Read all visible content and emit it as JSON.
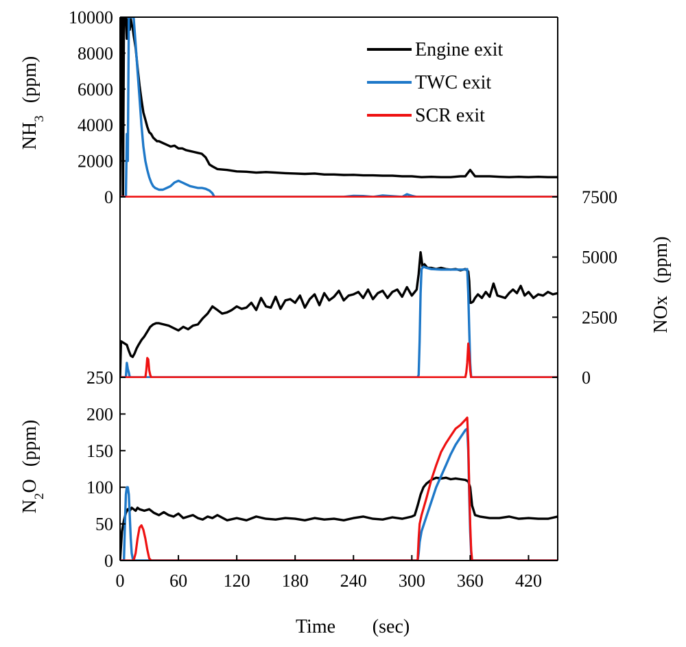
{
  "colors": {
    "engine": "#000000",
    "twc": "#1e78c8",
    "scr": "#ee1111",
    "frame": "#000000"
  },
  "legend": [
    {
      "key": "engine",
      "label": "Engine exit"
    },
    {
      "key": "twc",
      "label": "TWC exit"
    },
    {
      "key": "scr",
      "label": "SCR exit"
    }
  ],
  "chart_data": [
    {
      "type": "line",
      "panel": "NH3",
      "ylabel": "NH3 (ppm)",
      "ylabel_parts": {
        "main": "NH",
        "sub": "3",
        "unit": "(ppm)"
      },
      "ylim": [
        0,
        10000
      ],
      "yticks": [
        0,
        2000,
        4000,
        6000,
        8000,
        10000
      ],
      "ytick_labels": [
        "0",
        "2000",
        "4000",
        "6000",
        "8000",
        "10000"
      ],
      "ytick_label_side": "left",
      "series": [
        {
          "name": "Engine exit",
          "key": "engine",
          "x": [
            0,
            1,
            2,
            3,
            4,
            5,
            6,
            7,
            8,
            9,
            10,
            11,
            12,
            13,
            14,
            16,
            18,
            20,
            22,
            24,
            26,
            28,
            30,
            32,
            34,
            36,
            38,
            40,
            44,
            48,
            52,
            56,
            60,
            64,
            68,
            72,
            76,
            80,
            84,
            88,
            90,
            92,
            95,
            100,
            110,
            120,
            130,
            140,
            150,
            160,
            170,
            180,
            190,
            200,
            210,
            220,
            230,
            240,
            250,
            260,
            270,
            280,
            290,
            300,
            310,
            320,
            330,
            340,
            350,
            355,
            360,
            365,
            370,
            380,
            390,
            400,
            410,
            420,
            430,
            440,
            450
          ],
          "y": [
            0,
            10000,
            10000,
            0,
            10000,
            10000,
            10000,
            8800,
            9800,
            10000,
            9300,
            9900,
            9600,
            9400,
            9000,
            8300,
            7200,
            6200,
            5400,
            4700,
            4300,
            3900,
            3600,
            3500,
            3300,
            3200,
            3100,
            3100,
            3000,
            2900,
            2800,
            2850,
            2700,
            2700,
            2600,
            2550,
            2500,
            2450,
            2400,
            2200,
            2000,
            1800,
            1700,
            1550,
            1500,
            1420,
            1400,
            1350,
            1380,
            1350,
            1320,
            1300,
            1280,
            1300,
            1250,
            1250,
            1220,
            1230,
            1200,
            1200,
            1180,
            1180,
            1150,
            1150,
            1100,
            1120,
            1100,
            1100,
            1150,
            1150,
            1500,
            1150,
            1150,
            1150,
            1120,
            1100,
            1120,
            1100,
            1120,
            1100,
            1100
          ]
        },
        {
          "name": "TWC exit",
          "key": "twc",
          "x": [
            0,
            5,
            6,
            7,
            8,
            9,
            10,
            11,
            12,
            14,
            16,
            18,
            20,
            22,
            24,
            26,
            28,
            30,
            32,
            34,
            36,
            38,
            40,
            44,
            48,
            52,
            56,
            60,
            64,
            68,
            72,
            76,
            80,
            84,
            88,
            92,
            95,
            97,
            100,
            230,
            240,
            250,
            260,
            270,
            280,
            290,
            295,
            300,
            305,
            310,
            450
          ],
          "y": [
            0,
            0,
            0,
            3500,
            2000,
            10000,
            10000,
            10000,
            10000,
            10000,
            8500,
            7000,
            5500,
            4000,
            2800,
            2000,
            1500,
            1100,
            800,
            600,
            500,
            450,
            400,
            400,
            500,
            600,
            800,
            900,
            800,
            700,
            600,
            550,
            500,
            500,
            450,
            350,
            200,
            0,
            0,
            0,
            60,
            50,
            0,
            80,
            40,
            0,
            150,
            60,
            0,
            0,
            0
          ]
        },
        {
          "name": "SCR exit",
          "key": "scr",
          "x": [
            0,
            450
          ],
          "y": [
            0,
            0
          ]
        }
      ]
    },
    {
      "type": "line",
      "panel": "NOx",
      "ylabel": "NOx (ppm)",
      "ylabel_parts": {
        "main": "NOx",
        "unit": "(ppm)"
      },
      "ylim": [
        0,
        7500
      ],
      "yticks": [
        0,
        2500,
        5000,
        7500
      ],
      "ytick_labels": [
        "0",
        "2500",
        "5000",
        "7500"
      ],
      "ytick_label_side": "right",
      "series": [
        {
          "name": "Engine exit",
          "key": "engine",
          "x": [
            0,
            1,
            3,
            5,
            7,
            9,
            11,
            13,
            15,
            17,
            19,
            22,
            25,
            28,
            31,
            34,
            37,
            40,
            45,
            50,
            55,
            60,
            65,
            70,
            75,
            80,
            85,
            90,
            95,
            100,
            105,
            110,
            115,
            120,
            125,
            130,
            135,
            140,
            145,
            150,
            155,
            160,
            165,
            170,
            175,
            180,
            185,
            190,
            195,
            200,
            205,
            210,
            215,
            220,
            225,
            230,
            235,
            240,
            245,
            250,
            255,
            260,
            265,
            270,
            275,
            280,
            285,
            290,
            295,
            300,
            303,
            305,
            307,
            309,
            311,
            313,
            316,
            320,
            325,
            330,
            335,
            340,
            345,
            350,
            355,
            358,
            359,
            360,
            361,
            363,
            365,
            368,
            372,
            376,
            380,
            384,
            388,
            392,
            396,
            400,
            404,
            408,
            412,
            416,
            420,
            425,
            430,
            435,
            440,
            445,
            450
          ],
          "y": [
            0,
            1500,
            1450,
            1400,
            1350,
            1100,
            900,
            850,
            1000,
            1200,
            1350,
            1550,
            1700,
            1900,
            2100,
            2200,
            2250,
            2250,
            2200,
            2150,
            2050,
            1950,
            2100,
            2000,
            2150,
            2200,
            2450,
            2650,
            2950,
            2800,
            2650,
            2700,
            2800,
            2950,
            2850,
            2900,
            3100,
            2800,
            3300,
            2950,
            2900,
            3350,
            2850,
            3200,
            3250,
            3100,
            3400,
            2900,
            3250,
            3450,
            3000,
            3500,
            3200,
            3350,
            3600,
            3200,
            3400,
            3450,
            3550,
            3300,
            3650,
            3250,
            3500,
            3600,
            3300,
            3550,
            3650,
            3350,
            3750,
            3400,
            3550,
            3650,
            4300,
            5200,
            4600,
            4700,
            4550,
            4550,
            4500,
            4550,
            4500,
            4480,
            4500,
            4450,
            4500,
            4400,
            4000,
            3100,
            3100,
            3150,
            3300,
            3450,
            3300,
            3550,
            3350,
            3900,
            3400,
            3350,
            3300,
            3500,
            3650,
            3500,
            3800,
            3400,
            3550,
            3300,
            3450,
            3400,
            3550,
            3450,
            3500
          ]
        },
        {
          "name": "TWC exit",
          "key": "twc",
          "x": [
            0,
            5,
            6,
            7,
            8,
            9,
            10,
            11,
            12,
            300,
            305,
            306,
            307,
            308,
            309,
            310,
            312,
            315,
            320,
            330,
            340,
            350,
            355,
            357,
            358,
            359,
            360,
            361,
            450
          ],
          "y": [
            0,
            0,
            0,
            600,
            350,
            200,
            0,
            0,
            0,
            0,
            0,
            0,
            100,
            1500,
            3500,
            4500,
            4600,
            4550,
            4500,
            4480,
            4480,
            4480,
            4480,
            4500,
            3500,
            2000,
            600,
            0,
            0
          ]
        },
        {
          "name": "SCR exit",
          "key": "scr",
          "x": [
            0,
            26,
            27,
            28,
            29,
            30,
            31,
            32,
            355,
            356,
            357,
            358,
            359,
            360,
            361,
            450
          ],
          "y": [
            0,
            0,
            300,
            800,
            750,
            300,
            100,
            0,
            0,
            200,
            600,
            1400,
            1000,
            300,
            0,
            0
          ]
        }
      ]
    },
    {
      "type": "line",
      "panel": "N2O",
      "ylabel": "N2O (ppm)",
      "ylabel_parts": {
        "main": "N",
        "sub": "2",
        "tail": "O",
        "unit": "(ppm)"
      },
      "ylim": [
        0,
        250
      ],
      "yticks": [
        0,
        50,
        100,
        150,
        200,
        250
      ],
      "ytick_labels": [
        "0",
        "50",
        "100",
        "150",
        "200",
        "250"
      ],
      "ytick_label_side": "left",
      "xlabel": "Time (sec)",
      "xlabel_parts": {
        "main": "Time",
        "unit": "(sec)"
      },
      "xlim": [
        0,
        450
      ],
      "xticks": [
        0,
        60,
        120,
        180,
        240,
        300,
        360,
        420
      ],
      "xtick_labels": [
        "0",
        "60",
        "120",
        "180",
        "240",
        "300",
        "360",
        "420"
      ],
      "series": [
        {
          "name": "Engine exit",
          "key": "engine",
          "x": [
            0,
            2,
            4,
            6,
            8,
            10,
            12,
            14,
            16,
            18,
            20,
            25,
            30,
            35,
            40,
            45,
            50,
            55,
            60,
            65,
            70,
            75,
            80,
            85,
            90,
            95,
            100,
            110,
            120,
            130,
            140,
            150,
            160,
            170,
            180,
            190,
            200,
            210,
            220,
            230,
            240,
            250,
            260,
            270,
            280,
            290,
            300,
            303,
            306,
            309,
            312,
            315,
            320,
            325,
            330,
            335,
            340,
            345,
            350,
            355,
            358,
            360,
            362,
            365,
            370,
            380,
            390,
            400,
            410,
            420,
            430,
            440,
            450
          ],
          "y": [
            0,
            40,
            55,
            65,
            70,
            68,
            72,
            70,
            68,
            72,
            70,
            68,
            70,
            65,
            62,
            66,
            62,
            60,
            64,
            58,
            60,
            62,
            58,
            56,
            60,
            58,
            62,
            55,
            58,
            55,
            60,
            57,
            56,
            58,
            57,
            55,
            58,
            56,
            57,
            55,
            58,
            60,
            57,
            56,
            59,
            57,
            60,
            62,
            75,
            90,
            100,
            105,
            110,
            113,
            112,
            113,
            111,
            112,
            111,
            110,
            108,
            100,
            75,
            62,
            60,
            58,
            58,
            60,
            57,
            58,
            57,
            57,
            60
          ]
        },
        {
          "name": "TWC exit",
          "key": "twc",
          "x": [
            0,
            4,
            5,
            6,
            7,
            8,
            9,
            10,
            11,
            12,
            13,
            14,
            15,
            305,
            306,
            307,
            308,
            310,
            315,
            320,
            325,
            330,
            335,
            340,
            345,
            350,
            355,
            357,
            358,
            359,
            360,
            361,
            362,
            450
          ],
          "y": [
            0,
            0,
            50,
            90,
            100,
            100,
            90,
            60,
            30,
            10,
            3,
            0,
            0,
            0,
            0,
            10,
            25,
            40,
            60,
            80,
            100,
            115,
            130,
            145,
            158,
            168,
            178,
            180,
            150,
            90,
            40,
            10,
            0,
            0
          ]
        },
        {
          "name": "SCR exit",
          "key": "scr",
          "x": [
            0,
            14,
            16,
            18,
            20,
            22,
            24,
            26,
            28,
            30,
            32,
            305,
            306,
            307,
            308,
            310,
            315,
            320,
            325,
            330,
            335,
            340,
            345,
            350,
            355,
            357,
            358,
            359,
            360,
            361,
            362,
            450
          ],
          "y": [
            0,
            0,
            10,
            30,
            45,
            48,
            42,
            30,
            15,
            3,
            0,
            0,
            0,
            30,
            50,
            62,
            85,
            110,
            130,
            148,
            160,
            170,
            180,
            185,
            192,
            195,
            160,
            100,
            50,
            15,
            0,
            0
          ]
        }
      ]
    }
  ]
}
